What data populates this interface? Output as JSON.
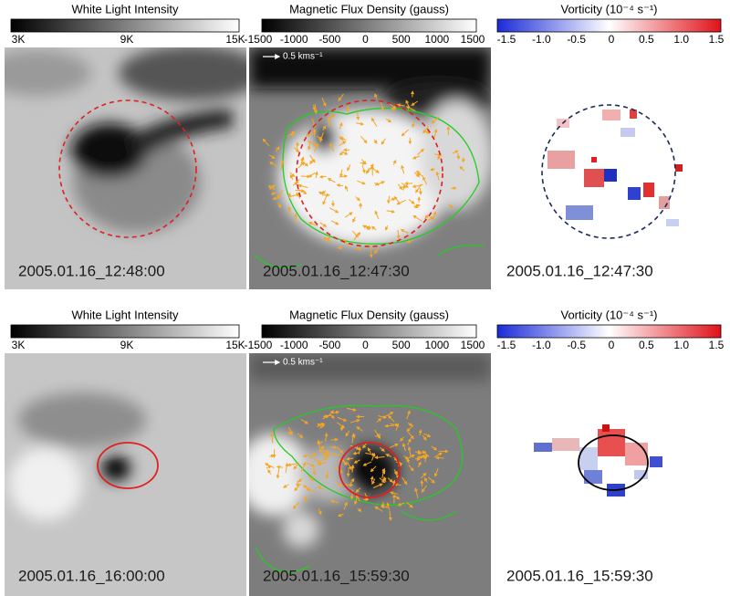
{
  "rows": [
    {
      "panels": [
        {
          "colorbar": {
            "title": "White Light Intensity",
            "ticks": [
              "3K",
              "9K",
              "15K"
            ]
          },
          "timestamp": "2005.01.16_12:48:00"
        },
        {
          "colorbar": {
            "title": "Magnetic Flux Density (gauss)",
            "ticks": [
              "-1500",
              "-1000",
              "-500",
              "0",
              "500",
              "1000",
              "1500"
            ]
          },
          "arrow_label": "0.5 kms⁻¹",
          "timestamp": "2005.01.16_12:47:30"
        },
        {
          "colorbar": {
            "title": "Vorticity (10⁻⁴ s⁻¹)",
            "ticks": [
              "-1.5",
              "-1.0",
              "-0.5",
              "0",
              "0.5",
              "1.0",
              "1.5"
            ]
          },
          "timestamp": "2005.01.16_12:47:30"
        }
      ]
    },
    {
      "panels": [
        {
          "colorbar": {
            "title": "White Light Intensity",
            "ticks": [
              "3K",
              "9K",
              "15K"
            ]
          },
          "timestamp": "2005.01.16_16:00:00"
        },
        {
          "colorbar": {
            "title": "Magnetic Flux Density (gauss)",
            "ticks": [
              "-1500",
              "-1000",
              "-500",
              "0",
              "500",
              "1000",
              "1500"
            ]
          },
          "arrow_label": "0.5 kms⁻¹",
          "timestamp": "2005.01.16_15:59:30"
        },
        {
          "colorbar": {
            "title": "Vorticity (10⁻⁴ s⁻¹)",
            "ticks": [
              "-1.5",
              "-1.0",
              "-0.5",
              "0",
              "0.5",
              "1.0",
              "1.5"
            ]
          },
          "timestamp": "2005.01.16_15:59:30"
        }
      ]
    }
  ]
}
